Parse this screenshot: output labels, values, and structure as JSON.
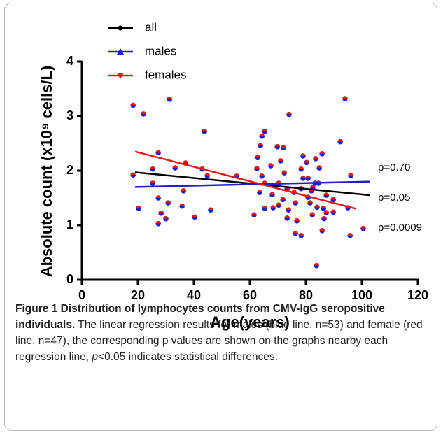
{
  "chart_data": {
    "type": "scatter",
    "xlabel": "Age(years)",
    "ylabel": "Absolute count (x10⁹ cells/L)",
    "xlim": [
      0,
      120
    ],
    "xticks": [
      0,
      20,
      40,
      60,
      80,
      100,
      120
    ],
    "ylim": [
      0,
      4
    ],
    "yticks": [
      0,
      1,
      2,
      3,
      4
    ],
    "series": [
      {
        "name": "all",
        "color": "#000000",
        "marker": "circle",
        "x": [
          19,
          103
        ],
        "values": [
          1.97,
          1.55
        ]
      },
      {
        "name": "males",
        "color": "#1f1fd0",
        "marker": "triangle-up",
        "x": [
          19,
          103
        ],
        "values": [
          1.7,
          1.8
        ]
      },
      {
        "name": "females",
        "color": "#e01a1a",
        "marker": "triangle-down",
        "x": [
          19,
          98
        ],
        "values": [
          2.35,
          1.3
        ]
      }
    ],
    "points": {
      "x": [
        18.3,
        22,
        31.3,
        43.8,
        27.3,
        33.3,
        37,
        43,
        18.3,
        25.3,
        25.3,
        20.3,
        27.3,
        28.3,
        27.3,
        30,
        35.8,
        36.3,
        30.8,
        40.3,
        46,
        44.8,
        55.3,
        61.5,
        63.5,
        64.3,
        62.5,
        62.8,
        63.8,
        64.3,
        65.3,
        65.3,
        67.5,
        68,
        65.3,
        68.3,
        70.3,
        71,
        69.8,
        72,
        71.8,
        70.3,
        73.3,
        72.3,
        73.8,
        73.3,
        75.8,
        76.3,
        74,
        76.8,
        76.3,
        78.3,
        78.3,
        79,
        78.3,
        79,
        80.3,
        80.8,
        80.8,
        82,
        81.5,
        82.5,
        83.3,
        83.5,
        84,
        82.3,
        83.8,
        84.5,
        84.8,
        85.8,
        86.3,
        86.5,
        87.3,
        87.3,
        85.8,
        89.8,
        89.8,
        92.3,
        94,
        96,
        95,
        95.8,
        100.5
      ],
      "values": [
        3.2,
        3.04,
        3.31,
        2.72,
        2.33,
        2.05,
        2.14,
        2.03,
        1.92,
        2.03,
        1.77,
        1.31,
        1.5,
        1.22,
        1.03,
        1.12,
        1.35,
        1.63,
        1.41,
        1.15,
        1.28,
        1.91,
        1.9,
        1.19,
        1.6,
        1.9,
        2.04,
        2.24,
        2.46,
        2.63,
        2.72,
        1.77,
        2.09,
        1.56,
        1.31,
        1.32,
        1.77,
        2.18,
        2.44,
        2.42,
        1.47,
        1.37,
        1.67,
        1.96,
        1.28,
        1.13,
        1.6,
        1.41,
        3.03,
        1.08,
        0.85,
        0.81,
        1.67,
        1.86,
        2.03,
        2.27,
        2.15,
        1.51,
        1.86,
        1.63,
        1.41,
        1.69,
        1.77,
        2.22,
        1.33,
        1.19,
        0.26,
        1.77,
        2.05,
        2.31,
        1.31,
        1.12,
        1.23,
        1.55,
        0.9,
        1.24,
        1.47,
        2.53,
        3.32,
        1.91,
        1.32,
        0.81,
        0.94
      ]
    },
    "annotations": [
      "p=0.70",
      "p=0.05",
      "p=0.0009"
    ]
  },
  "caption": {
    "title": "Figure 1 Distribution of lymphocytes counts from CMV-IgG seropositive individuals.",
    "text": "The linear regression results for males (blue line, n=53) and female (red line, n=47), the corresponding p values are shown on the graphs nearby each regression line, ",
    "italic": "p",
    "text_end": "<0.05 indicates statistical differences."
  }
}
